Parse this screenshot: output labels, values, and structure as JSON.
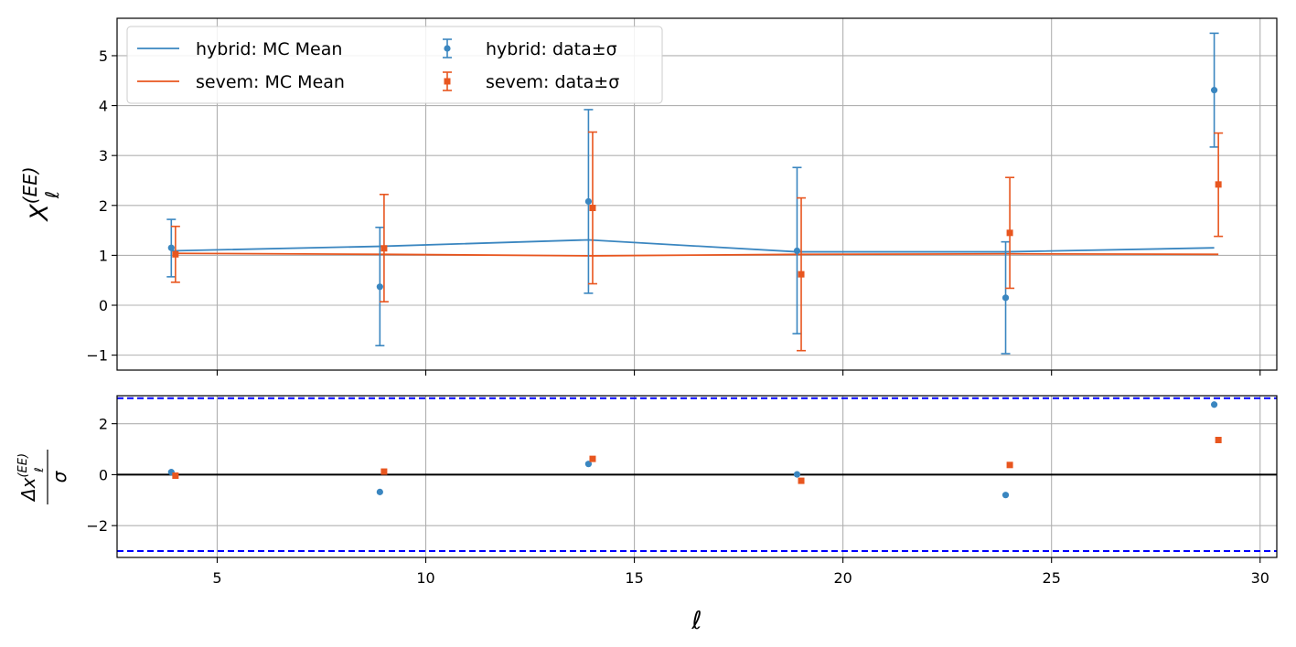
{
  "chart_data": [
    {
      "type": "scatter",
      "panel": "top",
      "xlabel": "ℓ",
      "ylabel": "X",
      "ylabel_sup": "(EE)",
      "ylabel_sub": "ℓ",
      "xlim": [
        2.6,
        30.4
      ],
      "ylim": [
        -1.3,
        5.75
      ],
      "xticks": [
        5,
        10,
        15,
        20,
        25,
        30
      ],
      "yticks": [
        -1,
        0,
        1,
        2,
        3,
        4,
        5
      ],
      "ytick_labels": [
        "−1",
        "0",
        "1",
        "2",
        "3",
        "4",
        "5"
      ],
      "grid": true,
      "legend_position": "top-left",
      "legend": [
        {
          "label": "hybrid: MC Mean",
          "kind": "line",
          "color": "#3a86c0"
        },
        {
          "label": "sevem: MC Mean",
          "kind": "line",
          "color": "#e8561f"
        },
        {
          "label": "hybrid: data±σ",
          "kind": "errorbar-circle",
          "color": "#3a86c0"
        },
        {
          "label": "sevem: data±σ",
          "kind": "errorbar-square",
          "color": "#e8561f"
        }
      ],
      "series": [
        {
          "name": "hybrid: MC Mean",
          "kind": "line",
          "color": "#3a86c0",
          "x": [
            3.9,
            8.9,
            13.9,
            18.9,
            23.9,
            28.9
          ],
          "y": [
            1.09,
            1.18,
            1.31,
            1.07,
            1.07,
            1.15
          ]
        },
        {
          "name": "sevem: MC Mean",
          "kind": "line",
          "color": "#e8561f",
          "x": [
            4.0,
            9.0,
            14.0,
            19.0,
            24.0,
            29.0
          ],
          "y": [
            1.04,
            1.02,
            0.99,
            1.02,
            1.03,
            1.02
          ]
        },
        {
          "name": "hybrid: data±σ",
          "kind": "errorbar",
          "marker": "circle",
          "color": "#3a86c0",
          "x": [
            3.9,
            8.9,
            13.9,
            18.9,
            23.9,
            28.9
          ],
          "y": [
            1.15,
            0.37,
            2.08,
            1.09,
            0.15,
            4.31
          ],
          "yerr_low": [
            0.57,
            -0.81,
            0.24,
            -0.57,
            -0.97,
            3.17
          ],
          "yerr_high": [
            1.72,
            1.56,
            3.92,
            2.76,
            1.27,
            5.45
          ]
        },
        {
          "name": "sevem: data±σ",
          "kind": "errorbar",
          "marker": "square",
          "color": "#e8561f",
          "x": [
            4.0,
            9.0,
            14.0,
            19.0,
            24.0,
            29.0
          ],
          "y": [
            1.02,
            1.14,
            1.95,
            0.62,
            1.45,
            2.42
          ],
          "yerr_low": [
            0.46,
            0.07,
            0.43,
            -0.91,
            0.34,
            1.38
          ],
          "yerr_high": [
            1.58,
            2.22,
            3.47,
            2.15,
            2.56,
            3.45
          ]
        }
      ]
    },
    {
      "type": "scatter",
      "panel": "bottom",
      "xlabel": "ℓ",
      "ylabel": "Δx",
      "ylabel_sup": "(EE)",
      "ylabel_sub": "ℓ",
      "ylabel_den": "σ",
      "xlim": [
        2.6,
        30.4
      ],
      "ylim": [
        -3.25,
        3.1
      ],
      "xticks": [
        5,
        10,
        15,
        20,
        25,
        30
      ],
      "xtick_labels": [
        "5",
        "10",
        "15",
        "20",
        "25",
        "30"
      ],
      "yticks": [
        -2,
        0,
        2
      ],
      "ytick_labels": [
        "−2",
        "0",
        "2"
      ],
      "grid": true,
      "hlines": [
        {
          "y": 0,
          "color": "#000000",
          "style": "solid"
        },
        {
          "y": 3,
          "color": "#0000ff",
          "style": "dashed"
        },
        {
          "y": -3,
          "color": "#0000ff",
          "style": "dashed"
        }
      ],
      "series": [
        {
          "name": "hybrid",
          "marker": "circle",
          "color": "#3a86c0",
          "x": [
            3.9,
            8.9,
            13.9,
            18.9,
            23.9,
            28.9
          ],
          "y": [
            0.1,
            -0.68,
            0.42,
            0.01,
            -0.8,
            2.75
          ]
        },
        {
          "name": "sevem",
          "marker": "square",
          "color": "#e8561f",
          "x": [
            4.0,
            9.0,
            14.0,
            19.0,
            24.0,
            29.0
          ],
          "y": [
            -0.04,
            0.12,
            0.62,
            -0.24,
            0.38,
            1.36
          ]
        }
      ]
    }
  ]
}
